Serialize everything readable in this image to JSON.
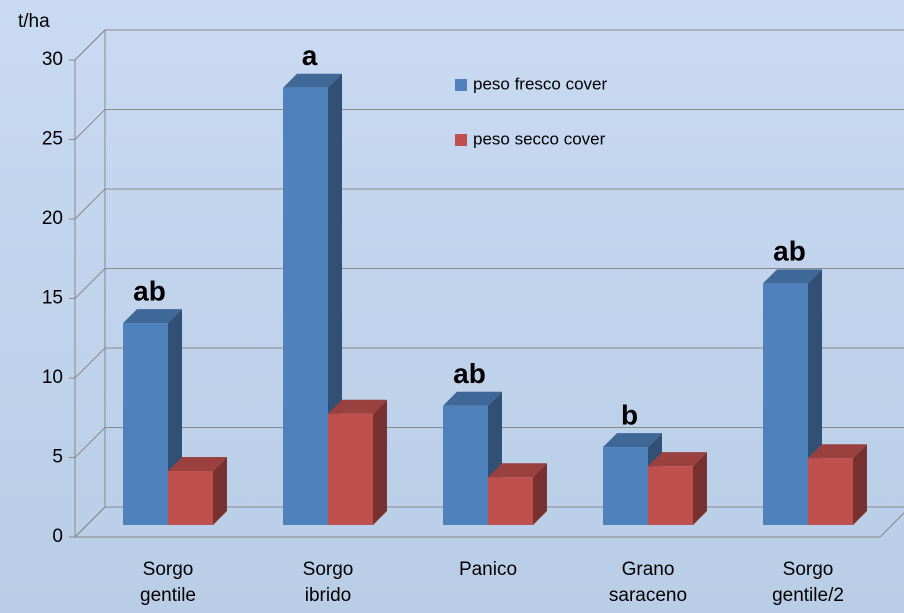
{
  "chart_data": {
    "type": "bar3d",
    "y_label": "t/ha",
    "categories": [
      "Sorgo gentile",
      "Sorgo ibrido",
      "Panico",
      "Grano saraceno",
      "Sorgo gentile/2"
    ],
    "series": [
      {
        "name": "peso fresco cover",
        "color": "#4f81bd",
        "values": [
          12.7,
          27.5,
          7.5,
          4.9,
          15.2
        ]
      },
      {
        "name": "peso secco cover",
        "color": "#c0504d",
        "values": [
          3.4,
          7.0,
          3.0,
          3.7,
          4.2
        ]
      }
    ],
    "annotations": [
      "ab",
      "a",
      "ab",
      "b",
      "ab"
    ],
    "ylim": [
      0,
      30
    ],
    "yticks": [
      0,
      5,
      10,
      15,
      20,
      25,
      30
    ],
    "grid": true
  }
}
